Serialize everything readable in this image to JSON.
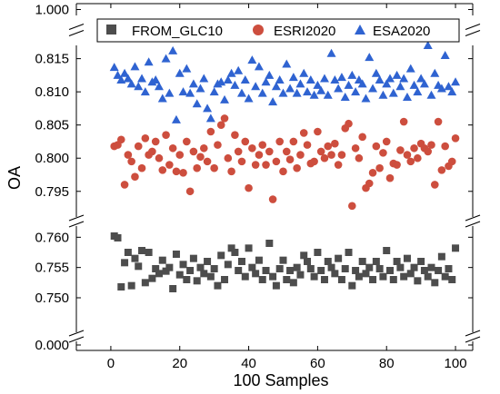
{
  "chart_data": {
    "type": "scatter",
    "xlabel": "100 Samples",
    "ylabel": "OA",
    "xlim": [
      -10,
      105
    ],
    "x_ticks": [
      0,
      20,
      40,
      60,
      80,
      100
    ],
    "x_tick_labels": [
      "0",
      "20",
      "40",
      "60",
      "80",
      "100"
    ],
    "axis_breaks": "y axis broken into three panels",
    "y_panels": [
      {
        "ylim": [
          0.999,
          1.001
        ],
        "ticks": [
          1.0
        ],
        "tick_labels": [
          "1.000"
        ]
      },
      {
        "ylim": [
          0.791,
          0.817
        ],
        "ticks": [
          0.795,
          0.8,
          0.805,
          0.81,
          0.815
        ],
        "tick_labels": [
          "0.795",
          "0.800",
          "0.805",
          "0.810",
          "0.815"
        ]
      },
      {
        "ylim": [
          0.744,
          0.762
        ],
        "ticks": [
          0.75,
          0.755,
          0.76
        ],
        "tick_labels": [
          "0.750",
          "0.755",
          "0.760"
        ]
      },
      {
        "ylim": [
          -0.001,
          0.001
        ],
        "ticks": [
          0.0
        ],
        "tick_labels": [
          "0.000"
        ]
      }
    ],
    "legend_position": "top",
    "grid": false,
    "x": [
      1,
      2,
      3,
      4,
      5,
      6,
      7,
      8,
      9,
      10,
      11,
      12,
      13,
      14,
      15,
      16,
      17,
      18,
      19,
      20,
      21,
      22,
      23,
      24,
      25,
      26,
      27,
      28,
      29,
      30,
      31,
      32,
      33,
      34,
      35,
      36,
      37,
      38,
      39,
      40,
      41,
      42,
      43,
      44,
      45,
      46,
      47,
      48,
      49,
      50,
      51,
      52,
      53,
      54,
      55,
      56,
      57,
      58,
      59,
      60,
      61,
      62,
      63,
      64,
      65,
      66,
      67,
      68,
      69,
      70,
      71,
      72,
      73,
      74,
      75,
      76,
      77,
      78,
      79,
      80,
      81,
      82,
      83,
      84,
      85,
      86,
      87,
      88,
      89,
      90,
      91,
      92,
      93,
      94,
      95,
      96,
      97,
      98,
      99,
      100
    ],
    "series": [
      {
        "name": "FROM_GLC10",
        "marker": "square",
        "color": "#4d4d4d",
        "values": [
          0.7602,
          0.7599,
          0.7518,
          0.7558,
          0.7575,
          0.752,
          0.7565,
          0.7552,
          0.7578,
          0.7525,
          0.7575,
          0.7532,
          0.7548,
          0.754,
          0.7562,
          0.7544,
          0.755,
          0.7515,
          0.7572,
          0.7538,
          0.7555,
          0.753,
          0.7545,
          0.7565,
          0.7528,
          0.755,
          0.754,
          0.756,
          0.7535,
          0.7548,
          0.752,
          0.757,
          0.753,
          0.7555,
          0.7582,
          0.7575,
          0.7545,
          0.756,
          0.7535,
          0.7582,
          0.755,
          0.754,
          0.7562,
          0.753,
          0.7545,
          0.759,
          0.7535,
          0.752,
          0.7548,
          0.7562,
          0.753,
          0.7545,
          0.7525,
          0.755,
          0.7538,
          0.757,
          0.756,
          0.7548,
          0.7535,
          0.7575,
          0.7545,
          0.753,
          0.756,
          0.755,
          0.754,
          0.7565,
          0.753,
          0.7548,
          0.7575,
          0.752,
          0.7545,
          0.7535,
          0.756,
          0.754,
          0.755,
          0.753,
          0.756,
          0.7548,
          0.7535,
          0.7578,
          0.7545,
          0.753,
          0.756,
          0.755,
          0.7535,
          0.7565,
          0.754,
          0.755,
          0.7528,
          0.756,
          0.7545,
          0.7535,
          0.755,
          0.7525,
          0.7545,
          0.7568,
          0.7535,
          0.7548,
          0.753,
          0.7582
        ]
      },
      {
        "name": "ESRI2020",
        "marker": "circle",
        "color": "#cd4e3e",
        "values": [
          0.8018,
          0.802,
          0.8028,
          0.796,
          0.8005,
          0.7995,
          0.7972,
          0.8018,
          0.7985,
          0.803,
          0.8005,
          0.801,
          0.8025,
          0.8,
          0.7982,
          0.8035,
          0.799,
          0.8015,
          0.798,
          0.8005,
          0.7978,
          0.8025,
          0.795,
          0.801,
          0.7985,
          0.8002,
          0.8015,
          0.7995,
          0.804,
          0.7985,
          0.802,
          0.805,
          0.806,
          0.8,
          0.798,
          0.8035,
          0.801,
          0.7995,
          0.8025,
          0.7955,
          0.8015,
          0.799,
          0.8005,
          0.802,
          0.799,
          0.801,
          0.7938,
          0.7995,
          0.8025,
          0.798,
          0.801,
          0.7998,
          0.8025,
          0.7985,
          0.8005,
          0.8038,
          0.802,
          0.7992,
          0.7995,
          0.804,
          0.801,
          0.8,
          0.8018,
          0.8005,
          0.8022,
          0.799,
          0.8005,
          0.8045,
          0.8052,
          0.7928,
          0.8015,
          0.8,
          0.8032,
          0.7955,
          0.7962,
          0.7978,
          0.8018,
          0.7985,
          0.8008,
          0.8025,
          0.797,
          0.7992,
          0.799,
          0.8012,
          0.8055,
          0.8005,
          0.7995,
          0.8015,
          0.8,
          0.8022,
          0.8015,
          0.801,
          0.802,
          0.796,
          0.8055,
          0.7982,
          0.8018,
          0.7988,
          0.7995,
          0.803
        ]
      },
      {
        "name": "ESA2020",
        "marker": "triangle",
        "color": "#2f63d1",
        "values": [
          0.8137,
          0.8125,
          0.8118,
          0.8128,
          0.812,
          0.8112,
          0.8138,
          0.8108,
          0.812,
          0.81,
          0.8145,
          0.8115,
          0.8118,
          0.8108,
          0.809,
          0.815,
          0.8098,
          0.8162,
          0.8058,
          0.8128,
          0.81,
          0.8135,
          0.8098,
          0.8112,
          0.8082,
          0.8105,
          0.812,
          0.8075,
          0.806,
          0.81,
          0.8112,
          0.8115,
          0.8088,
          0.8118,
          0.8128,
          0.811,
          0.8132,
          0.8098,
          0.8118,
          0.809,
          0.8148,
          0.8108,
          0.8138,
          0.8098,
          0.8115,
          0.8125,
          0.8085,
          0.8108,
          0.8118,
          0.8098,
          0.8142,
          0.8105,
          0.8122,
          0.8098,
          0.8112,
          0.8128,
          0.81,
          0.8118,
          0.8095,
          0.811,
          0.8102,
          0.812,
          0.8095,
          0.8158,
          0.8118,
          0.8105,
          0.8122,
          0.8092,
          0.811,
          0.8125,
          0.81,
          0.8118,
          0.8112,
          0.809,
          0.8152,
          0.8105,
          0.8128,
          0.8118,
          0.8095,
          0.8112,
          0.812,
          0.8098,
          0.8125,
          0.8108,
          0.812,
          0.8092,
          0.8135,
          0.811,
          0.81,
          0.812,
          0.8112,
          0.817,
          0.8095,
          0.8128,
          0.811,
          0.8105,
          0.8155,
          0.8108,
          0.81,
          0.8115
        ]
      }
    ]
  }
}
